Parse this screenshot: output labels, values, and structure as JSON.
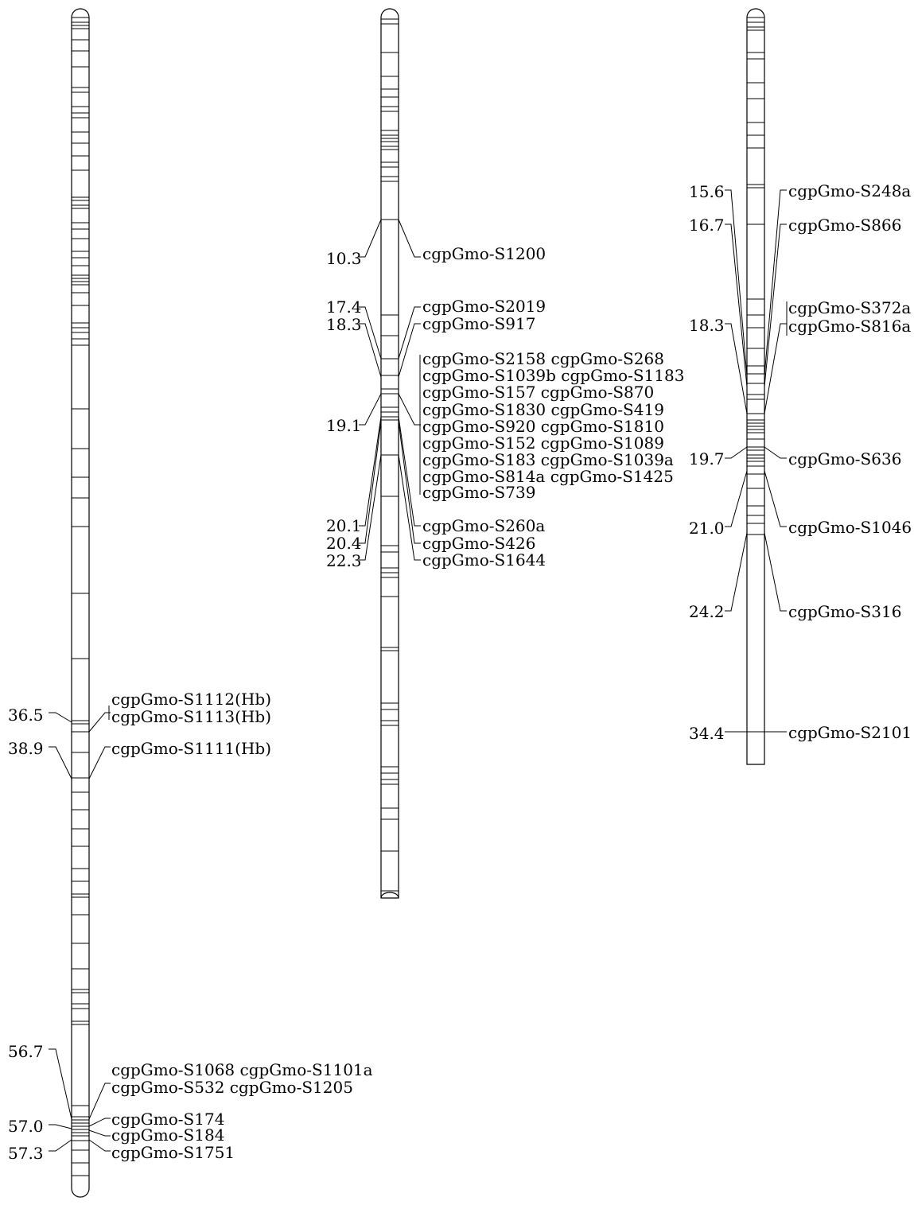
{
  "chromosomes": [
    {
      "id": "chr-a",
      "markers": [
        {
          "pos": "36.5",
          "labels": [
            "cgpGmo-S1112(Hb)",
            "cgpGmo-S1113(Hb)"
          ]
        },
        {
          "pos": "38.9",
          "labels": [
            "cgpGmo-S1111(Hb)"
          ]
        },
        {
          "pos": "56.7",
          "labels": [
            "cgpGmo-S1068 cgpGmo-S1101a",
            "cgpGmo-S532 cgpGmo-S1205"
          ]
        },
        {
          "pos": "57.0",
          "labels": [
            "cgpGmo-S174",
            "cgpGmo-S184"
          ]
        },
        {
          "pos": "57.3",
          "labels": [
            "cgpGmo-S1751"
          ]
        }
      ]
    },
    {
      "id": "chr-b",
      "markers": [
        {
          "pos": "10.3",
          "labels": [
            "cgpGmo-S1200"
          ]
        },
        {
          "pos": "17.4",
          "labels": [
            "cgpGmo-S2019"
          ]
        },
        {
          "pos": "18.3",
          "labels": [
            "cgpGmo-S917"
          ]
        },
        {
          "pos": "19.1",
          "labels": [
            "cgpGmo-S2158 cgpGmo-S268",
            "cgpGmo-S1039b cgpGmo-S1183",
            "cgpGmo-S157 cgpGmo-S870",
            "cgpGmo-S1830 cgpGmo-S419",
            "cgpGmo-S920 cgpGmo-S1810",
            "cgpGmo-S152 cgpGmo-S1089",
            "cgpGmo-S183 cgpGmo-S1039a",
            "cgpGmo-S814a cgpGmo-S1425",
            "cgpGmo-S739"
          ]
        },
        {
          "pos": "20.1",
          "labels": [
            "cgpGmo-S260a"
          ]
        },
        {
          "pos": "20.4",
          "labels": [
            "cgpGmo-S426"
          ]
        },
        {
          "pos": "22.3",
          "labels": [
            "cgpGmo-S1644"
          ]
        }
      ]
    },
    {
      "id": "chr-c",
      "markers": [
        {
          "pos": "15.6",
          "labels": [
            "cgpGmo-S248a"
          ]
        },
        {
          "pos": "16.7",
          "labels": [
            "cgpGmo-S866"
          ]
        },
        {
          "pos": "18.3",
          "labels": [
            "cgpGmo-S372a",
            "cgpGmo-S816a"
          ]
        },
        {
          "pos": "19.7",
          "labels": [
            "cgpGmo-S636"
          ]
        },
        {
          "pos": "21.0",
          "labels": [
            "cgpGmo-S1046"
          ]
        },
        {
          "pos": "24.2",
          "labels": [
            "cgpGmo-S316"
          ]
        },
        {
          "pos": "34.4",
          "labels": [
            "cgpGmo-S2101"
          ]
        }
      ]
    }
  ]
}
